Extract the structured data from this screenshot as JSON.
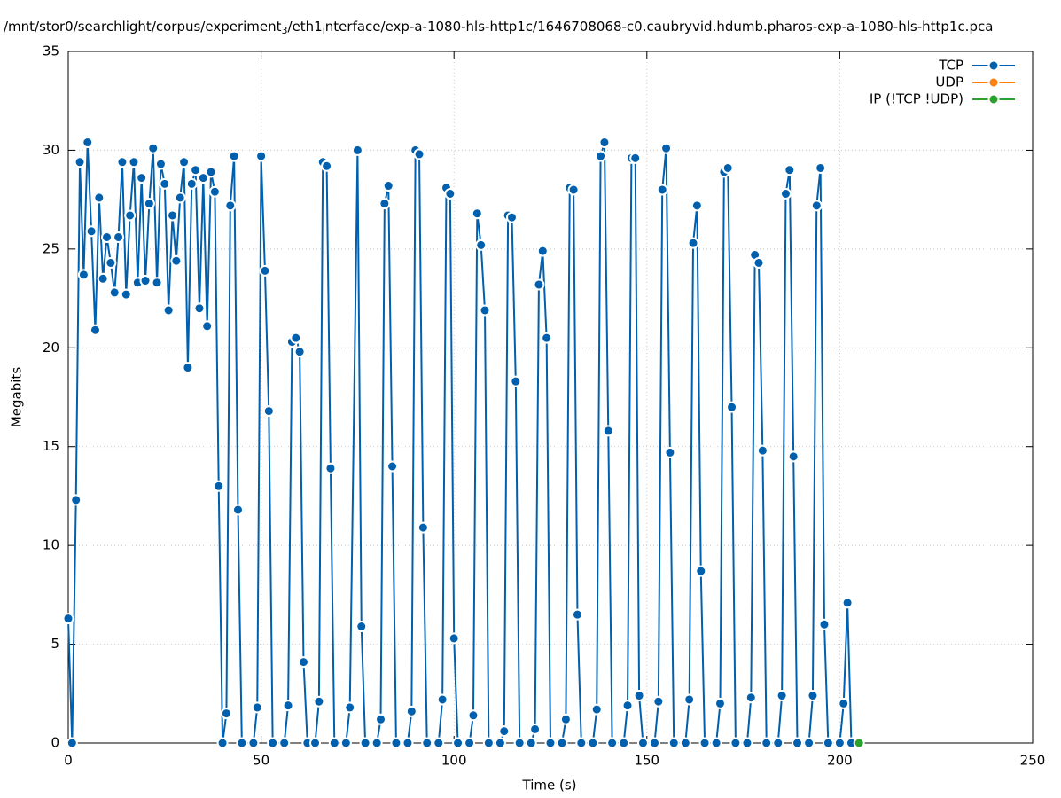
{
  "chart_data": {
    "type": "line",
    "title": [
      "/mnt/stor0/searchlight/corpus/experiment",
      "3",
      "/eth1",
      "i",
      "nterface/exp-a-1080-hls-http1c/1646708068-c0.caubryvid.hdumb.pharos-exp-a-1080-hls-http1c.pca"
    ],
    "x_label": "Time (s)",
    "y_label": "Megabits",
    "xlim": [
      0,
      250
    ],
    "xticks": [
      0,
      50,
      100,
      150,
      200,
      250
    ],
    "ylim": [
      0,
      35
    ],
    "yticks": [
      0,
      5,
      10,
      15,
      20,
      25,
      30,
      35
    ],
    "grid": true,
    "legend": "top-right",
    "series": [
      {
        "name": "TCP",
        "color": "#0060ad",
        "x": [
          0,
          1,
          2,
          3,
          4,
          5,
          6,
          7,
          8,
          9,
          10,
          11,
          12,
          13,
          14,
          15,
          16,
          17,
          18,
          19,
          20,
          21,
          22,
          23,
          24,
          25,
          26,
          27,
          28,
          29,
          30,
          31,
          32,
          33,
          34,
          35,
          36,
          37,
          38,
          39,
          40,
          41,
          42,
          43,
          44,
          45,
          48,
          49,
          50,
          51,
          52,
          53,
          56,
          57,
          58,
          59,
          60,
          61,
          62,
          64,
          65,
          66,
          67,
          68,
          69,
          72,
          73,
          75,
          76,
          77,
          80,
          81,
          82,
          83,
          84,
          85,
          88,
          89,
          90,
          91,
          92,
          93,
          96,
          97,
          98,
          99,
          100,
          101,
          104,
          105,
          106,
          107,
          108,
          109,
          112,
          113,
          114,
          115,
          116,
          117,
          120,
          121,
          122,
          123,
          124,
          125,
          128,
          129,
          130,
          131,
          132,
          133,
          136,
          137,
          138,
          139,
          140,
          141,
          144,
          145,
          146,
          147,
          148,
          149,
          152,
          153,
          154,
          155,
          156,
          157,
          160,
          161,
          162,
          163,
          164,
          165,
          168,
          169,
          170,
          171,
          172,
          173,
          176,
          177,
          178,
          179,
          180,
          181,
          184,
          185,
          186,
          187,
          188,
          189,
          192,
          193,
          194,
          195,
          196,
          197,
          200,
          201,
          202,
          203
        ],
        "values": [
          6.3,
          0,
          12.3,
          29.4,
          23.7,
          30.4,
          25.9,
          20.9,
          27.6,
          23.5,
          25.6,
          24.3,
          22.8,
          25.6,
          29.4,
          22.7,
          26.7,
          29.4,
          23.3,
          28.6,
          23.4,
          27.3,
          30.1,
          23.3,
          29.3,
          28.3,
          21.9,
          26.7,
          24.4,
          27.6,
          29.4,
          19.0,
          28.3,
          29.0,
          22.0,
          28.6,
          21.1,
          28.9,
          27.9,
          13.0,
          0,
          1.5,
          27.2,
          29.7,
          11.8,
          0,
          0,
          1.8,
          29.7,
          23.9,
          16.8,
          0,
          0,
          1.9,
          20.3,
          20.5,
          19.8,
          4.1,
          0,
          0,
          2.1,
          29.4,
          29.2,
          13.9,
          0,
          0,
          1.8,
          30.0,
          5.9,
          0,
          0,
          1.2,
          27.3,
          28.2,
          14.0,
          0,
          0,
          1.6,
          30.0,
          29.8,
          10.9,
          0,
          0,
          2.2,
          28.1,
          27.8,
          5.3,
          0,
          0,
          1.4,
          26.8,
          25.2,
          21.9,
          0,
          0,
          0.6,
          26.7,
          26.6,
          18.3,
          0,
          0,
          0.7,
          23.2,
          24.9,
          20.5,
          0,
          0,
          1.2,
          28.1,
          28.0,
          6.5,
          0,
          0,
          1.7,
          29.7,
          30.4,
          15.8,
          0,
          0,
          1.9,
          29.6,
          29.6,
          2.4,
          0,
          0,
          2.1,
          28.0,
          30.1,
          14.7,
          0,
          0,
          2.2,
          25.3,
          27.2,
          8.7,
          0,
          0,
          2.0,
          28.9,
          29.1,
          17.0,
          0,
          0,
          2.3,
          24.7,
          24.3,
          14.8,
          0,
          0,
          2.4,
          27.8,
          29.0,
          14.5,
          0,
          0,
          2.4,
          27.2,
          29.1,
          6.0,
          0,
          0,
          2.0,
          7.1,
          0
        ]
      },
      {
        "name": "UDP",
        "color": "#ff7f0e",
        "x": [],
        "values": []
      },
      {
        "name": "IP (!TCP  !UDP)",
        "color": "#2ca02c",
        "x": [
          205
        ],
        "values": [
          0
        ]
      }
    ]
  }
}
